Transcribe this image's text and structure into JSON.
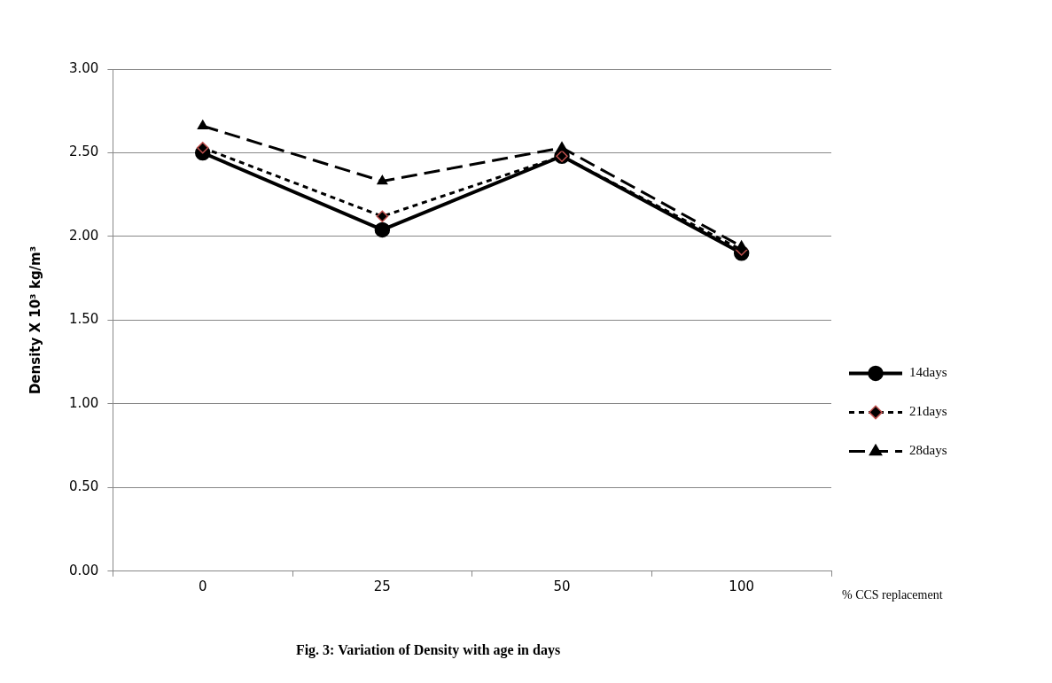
{
  "chart_data": {
    "type": "line",
    "title": "Fig. 3: Variation of Density with age in days",
    "xlabel": "% CCS replacement",
    "ylabel": "Density X 10³ kg/m³",
    "categories": [
      "0",
      "25",
      "50",
      "100"
    ],
    "series": [
      {
        "name": "14days",
        "color": "#000000",
        "values": [
          2.5,
          2.04,
          2.48,
          1.9
        ],
        "marker": "circle",
        "line_style": "solid"
      },
      {
        "name": "21days",
        "color": "#000000",
        "values": [
          2.53,
          2.12,
          2.48,
          1.92
        ],
        "marker": "diamond",
        "line_style": "dotted"
      },
      {
        "name": "28days",
        "color": "#000000",
        "values": [
          2.66,
          2.33,
          2.53,
          1.94
        ],
        "marker": "triangle",
        "line_style": "dashed"
      }
    ],
    "ylim": [
      0,
      3
    ],
    "yticks": [
      {
        "value": 0,
        "label": "0.00"
      },
      {
        "value": 0.5,
        "label": "0.50"
      },
      {
        "value": 1,
        "label": "1.00"
      },
      {
        "value": 1.5,
        "label": "1.50"
      },
      {
        "value": 2,
        "label": "2.00"
      },
      {
        "value": 2.5,
        "label": "2.50"
      },
      {
        "value": 3,
        "label": "3.00"
      }
    ],
    "grid": "y",
    "legend": "right"
  }
}
